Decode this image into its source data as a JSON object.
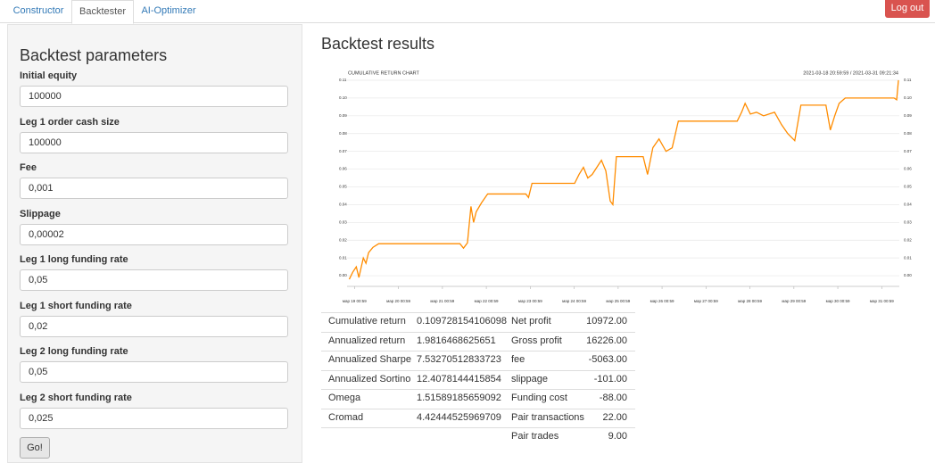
{
  "nav": {
    "tabs": [
      "Constructor",
      "Backtester",
      "AI-Optimizer"
    ],
    "logout": "Log out"
  },
  "params": {
    "title": "Backtest parameters",
    "fields": [
      {
        "label": "Initial equity",
        "value": "100000"
      },
      {
        "label": "Leg 1 order cash size",
        "value": "100000"
      },
      {
        "label": "Fee",
        "value": "0,001"
      },
      {
        "label": "Slippage",
        "value": "0,00002"
      },
      {
        "label": "Leg 1 long funding rate",
        "value": "0,05"
      },
      {
        "label": "Leg 1 short funding rate",
        "value": "0,02"
      },
      {
        "label": "Leg 2 long funding rate",
        "value": "0,05"
      },
      {
        "label": "Leg 2 short funding rate",
        "value": "0,025"
      }
    ],
    "button": "Go!"
  },
  "results": {
    "title": "Backtest results",
    "left_table": [
      [
        "Cumulative return",
        "0.109728154106098"
      ],
      [
        "Annualized return",
        "1.9816468625651"
      ],
      [
        "Annualized Sharpe",
        "7.53270512833723"
      ],
      [
        "Annualized Sortino",
        "12.4078144415854"
      ],
      [
        "Omega",
        "1.51589185659092"
      ],
      [
        "Cromad",
        "4.42444525969709"
      ]
    ],
    "right_table": [
      [
        "Net profit",
        "10972.00"
      ],
      [
        "Gross profit",
        "16226.00"
      ],
      [
        "fee",
        "-5063.00"
      ],
      [
        "slippage",
        "-101.00"
      ],
      [
        "Funding cost",
        "-88.00"
      ],
      [
        "Pair transactions",
        "22.00"
      ],
      [
        "Pair trades",
        "9.00"
      ]
    ]
  },
  "chart_data": {
    "type": "line",
    "title": "CUMULATIVE RETURN CHART",
    "subtitle": "2021-03-18 20:59:59 / 2021-03-31 09:21:34",
    "x": [
      -0.12,
      -0.04,
      0.04,
      0.1,
      0.2,
      0.26,
      0.32,
      0.42,
      0.55,
      2.4,
      2.48,
      2.57,
      2.65,
      2.71,
      2.77,
      2.89,
      3.03,
      3.9,
      3.96,
      4.04,
      5.01,
      5.11,
      5.21,
      5.31,
      5.41,
      5.62,
      5.72,
      5.82,
      5.88,
      5.96,
      6.57,
      6.67,
      6.79,
      6.93,
      7.09,
      7.23,
      7.37,
      8.71,
      8.81,
      8.89,
      9.01,
      9.15,
      9.31,
      9.56,
      9.72,
      9.86,
      10.02,
      10.16,
      10.73,
      10.83,
      10.93,
      11.03,
      11.17,
      12.28,
      12.34,
      12.38
    ],
    "series": [
      {
        "name": "Cumulative return",
        "color": "#ff8c00",
        "values": [
          -0.002,
          0.002,
          0.005,
          -0.001,
          0.01,
          0.007,
          0.013,
          0.016,
          0.018,
          0.018,
          0.0155,
          0.0185,
          0.039,
          0.03,
          0.036,
          0.041,
          0.046,
          0.046,
          0.044,
          0.052,
          0.052,
          0.057,
          0.061,
          0.055,
          0.057,
          0.065,
          0.059,
          0.042,
          0.04,
          0.067,
          0.067,
          0.057,
          0.072,
          0.077,
          0.07,
          0.072,
          0.087,
          0.087,
          0.092,
          0.097,
          0.091,
          0.092,
          0.09,
          0.092,
          0.085,
          0.08,
          0.076,
          0.096,
          0.096,
          0.082,
          0.09,
          0.097,
          0.1,
          0.1,
          0.099,
          0.11
        ]
      }
    ],
    "xlim": [
      -0.17,
      12.4
    ],
    "ylim": [
      -0.006,
      0.112
    ],
    "xticks": [
      {
        "value": 0,
        "label": "мар 19 00:59"
      },
      {
        "value": 1,
        "label": "мар 20 00:59"
      },
      {
        "value": 2,
        "label": "мар 21 00:59"
      },
      {
        "value": 3,
        "label": "мар 22 00:59"
      },
      {
        "value": 4,
        "label": "мар 23 00:59"
      },
      {
        "value": 5,
        "label": "мар 24 00:59"
      },
      {
        "value": 6,
        "label": "мар 25 00:59"
      },
      {
        "value": 7,
        "label": "мар 26 00:59"
      },
      {
        "value": 8,
        "label": "мар 27 00:59"
      },
      {
        "value": 9,
        "label": "мар 28 00:59"
      },
      {
        "value": 10,
        "label": "мар 29 00:59"
      },
      {
        "value": 11,
        "label": "мар 30 00:59"
      },
      {
        "value": 12,
        "label": "мар 31 00:59"
      }
    ],
    "yticks": [
      {
        "value": 0,
        "label": "0.00"
      },
      {
        "value": 0.01,
        "label": "0.01"
      },
      {
        "value": 0.02,
        "label": "0.02"
      },
      {
        "value": 0.03,
        "label": "0.03"
      },
      {
        "value": 0.04,
        "label": "0.04"
      },
      {
        "value": 0.05,
        "label": "0.05"
      },
      {
        "value": 0.06,
        "label": "0.06"
      },
      {
        "value": 0.07,
        "label": "0.07"
      },
      {
        "value": 0.08,
        "label": "0.08"
      },
      {
        "value": 0.09,
        "label": "0.09"
      },
      {
        "value": 0.1,
        "label": "0.10"
      },
      {
        "value": 0.11,
        "label": "0.11"
      }
    ],
    "grid": true
  }
}
